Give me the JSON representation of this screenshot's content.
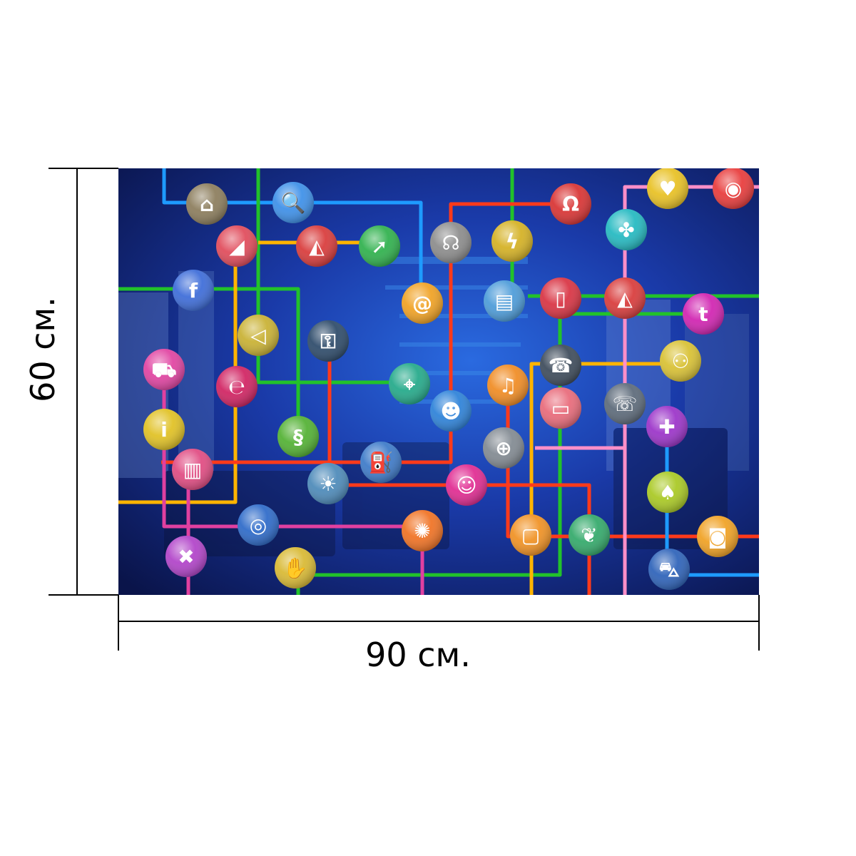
{
  "dimensions": {
    "width_label": "90 см.",
    "height_label": "60 см."
  },
  "artwork": {
    "subject": "app icons connected by colored lines",
    "background_color": "#0b1a5e",
    "line_colors": [
      "#1e9bff",
      "#22c22a",
      "#ffb400",
      "#ff3a1a",
      "#ff8fc8",
      "#e040a0"
    ],
    "icons": [
      {
        "name": "toolbox-icon",
        "color": "#8a7b5a",
        "glyph": "⌂"
      },
      {
        "name": "search-icon",
        "color": "#3a8ee8",
        "glyph": "🔍"
      },
      {
        "name": "cctv-icon",
        "color": "#e04858",
        "glyph": "◢"
      },
      {
        "name": "eraser-icon",
        "color": "#d83838",
        "glyph": "◭"
      },
      {
        "name": "cursor-icon",
        "color": "#2cb04a",
        "glyph": "➚"
      },
      {
        "name": "headset-icon",
        "color": "#8a8a8a",
        "glyph": "☊"
      },
      {
        "name": "speech-icon",
        "color": "#d4b020",
        "glyph": "ϟ"
      },
      {
        "name": "headphones-icon",
        "color": "#d83030",
        "glyph": "Ω"
      },
      {
        "name": "heart-icon",
        "color": "#e8c020",
        "glyph": "♥"
      },
      {
        "name": "camera-icon",
        "color": "#e83838",
        "glyph": "◉"
      },
      {
        "name": "facebook-icon",
        "color": "#3a6ad8",
        "glyph": "f"
      },
      {
        "name": "at-sign-icon",
        "color": "#f0a020",
        "glyph": "@"
      },
      {
        "name": "document-icon",
        "color": "#4a9ad8",
        "glyph": "▤"
      },
      {
        "name": "phone-icon",
        "color": "#d83040",
        "glyph": "▯"
      },
      {
        "name": "eraser-icon-2",
        "color": "#d83838",
        "glyph": "◭"
      },
      {
        "name": "clover-icon",
        "color": "#20b8c0",
        "glyph": "✤"
      },
      {
        "name": "tumblr-icon",
        "color": "#d020b0",
        "glyph": "t"
      },
      {
        "name": "mute-icon",
        "color": "#c8b030",
        "glyph": "◁"
      },
      {
        "name": "lock-icon",
        "color": "#2a4868",
        "glyph": "⚿"
      },
      {
        "name": "cart-icon",
        "color": "#e040a0",
        "glyph": "⛟"
      },
      {
        "name": "ear-icon",
        "color": "#d02060",
        "glyph": "℮"
      },
      {
        "name": "satellite-icon",
        "color": "#20a888",
        "glyph": "⌖"
      },
      {
        "name": "user-icon",
        "color": "#2a80d8",
        "glyph": "☻"
      },
      {
        "name": "music-icon",
        "color": "#f08a20",
        "glyph": "♫"
      },
      {
        "name": "mobile-icon",
        "color": "#3a4858",
        "glyph": "☎"
      },
      {
        "name": "family-icon",
        "color": "#d8c030",
        "glyph": "⚇"
      },
      {
        "name": "tv-icon",
        "color": "#e86878",
        "glyph": "▭"
      },
      {
        "name": "telephone-icon",
        "color": "#5a6878",
        "glyph": "☏"
      },
      {
        "name": "first-aid-icon",
        "color": "#9a30c8",
        "glyph": "✚"
      },
      {
        "name": "info-icon",
        "color": "#e0c020",
        "glyph": "i"
      },
      {
        "name": "section-icon",
        "color": "#50b030",
        "glyph": "§"
      },
      {
        "name": "fuel-icon",
        "color": "#3a78c8",
        "glyph": "⛽"
      },
      {
        "name": "book-icon",
        "color": "#e04880",
        "glyph": "▥"
      },
      {
        "name": "idea-icon",
        "color": "#4a88b8",
        "glyph": "☀"
      },
      {
        "name": "chat-user-icon",
        "color": "#e02890",
        "glyph": "☺"
      },
      {
        "name": "globe-icon",
        "color": "#808890",
        "glyph": "⊕"
      },
      {
        "name": "tree-icon",
        "color": "#a8c820",
        "glyph": "♠"
      },
      {
        "name": "wireless-icon",
        "color": "#2a68c8",
        "glyph": "◎"
      },
      {
        "name": "sun-icon",
        "color": "#f07020",
        "glyph": "✺"
      },
      {
        "name": "usb-icon",
        "color": "#f09020",
        "glyph": "▢"
      },
      {
        "name": "bird-icon",
        "color": "#30a868",
        "glyph": "❦"
      },
      {
        "name": "photo-camera-icon",
        "color": "#f0a020",
        "glyph": "◙"
      },
      {
        "name": "tools-icon",
        "color": "#b040c8",
        "glyph": "✖"
      },
      {
        "name": "hand-icon",
        "color": "#d8b830",
        "glyph": "✋"
      },
      {
        "name": "car-icon",
        "color": "#2a60b8",
        "glyph": "⛍"
      }
    ]
  }
}
